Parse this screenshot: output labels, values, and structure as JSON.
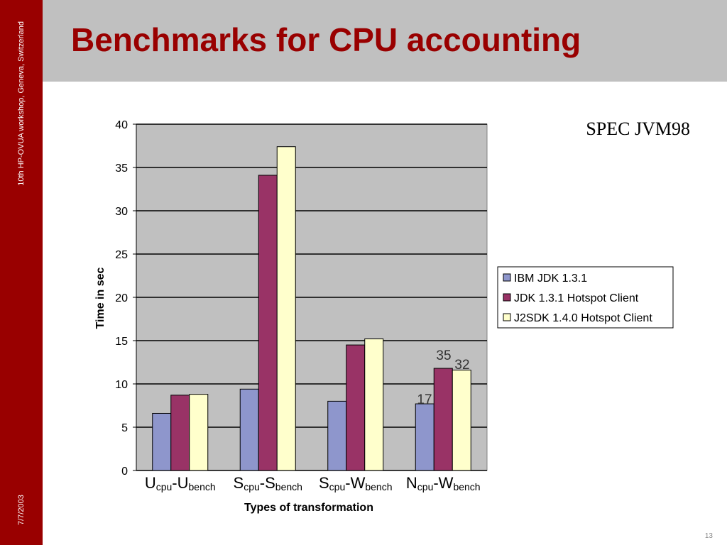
{
  "slide": {
    "title": "Benchmarks for CPU accounting",
    "subtitle": "SPEC JVM98",
    "sidebar": "10th HP-OVUA workshop, Geneva, Switzerland",
    "date": "7/7/2003",
    "page": "13"
  },
  "chart_data": {
    "type": "bar",
    "x_label": "Types of transformation",
    "y_label": "Time in sec",
    "categories": [
      [
        "U",
        "cpu",
        "-U",
        "bench"
      ],
      [
        "S",
        "cpu",
        "-S",
        "bench"
      ],
      [
        "S",
        "cpu",
        "-W",
        "bench"
      ],
      [
        "N",
        "cpu",
        "-W",
        "bench"
      ]
    ],
    "series": [
      {
        "name": "IBM JDK 1.3.1",
        "color": "#8e96cc",
        "values": [
          6.6,
          9.4,
          8.0,
          7.7
        ]
      },
      {
        "name": "JDK 1.3.1 Hotspot Client",
        "color": "#993366",
        "values": [
          8.7,
          34.1,
          14.5,
          11.8
        ]
      },
      {
        "name": "J2SDK 1.4.0 Hotspot Client",
        "color": "#ffffcc",
        "values": [
          8.8,
          37.4,
          15.2,
          11.6
        ]
      }
    ],
    "annotations": [
      "17",
      "35",
      "32"
    ],
    "ylim": [
      0,
      40
    ],
    "yticks": [
      0,
      5,
      10,
      15,
      20,
      25,
      30,
      35,
      40
    ],
    "grid": true,
    "legend": "right",
    "plot_background": "#c0c0c0"
  }
}
